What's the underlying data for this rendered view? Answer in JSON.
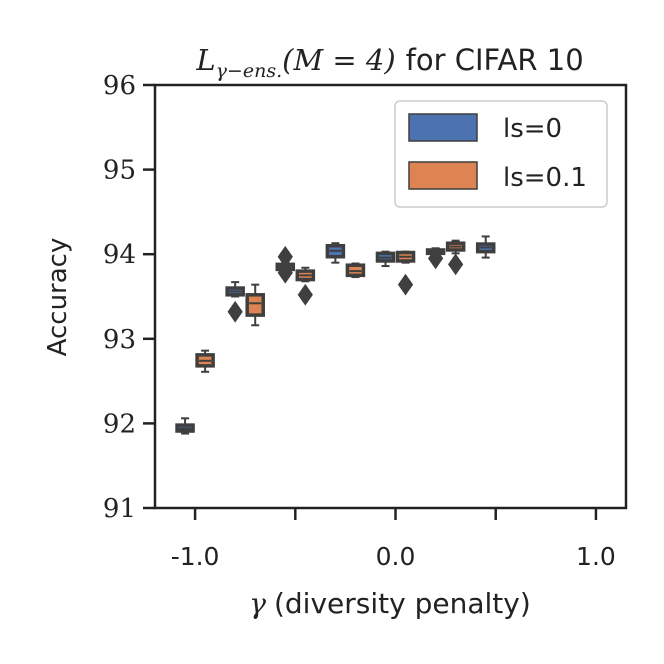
{
  "chart_data": {
    "type": "box",
    "title_math": "L",
    "title_sub": "γ−ens.",
    "title_args": "(M = 4)",
    "title_text": "for CIFAR 10",
    "xlabel_symbol": "γ",
    "xlabel_text": "(diversity penalty)",
    "ylabel": "Accuracy",
    "ylim": [
      91,
      96
    ],
    "yticks": [
      "91",
      "92",
      "93",
      "94",
      "95",
      "96"
    ],
    "xlim": [
      -1.2,
      1.15
    ],
    "xticks": [
      -1.0,
      -0.5,
      0.0,
      0.5,
      1.0
    ],
    "xticklabels": [
      "-1.0",
      "",
      "0.0",
      "",
      "1.0"
    ],
    "legend": {
      "placement": "top-right",
      "entries": [
        {
          "label": "ls=0",
          "color": "#4c72b0"
        },
        {
          "label": "ls=0.1",
          "color": "#dd8452"
        }
      ]
    },
    "series": [
      {
        "name": "ls=0",
        "color": "#4c72b0",
        "boxes": [
          {
            "gamma": -1.0,
            "q1": 91.91,
            "median": 91.94,
            "q3": 91.98,
            "whislo": 91.88,
            "whishi": 92.06,
            "fliers": []
          },
          {
            "gamma": -0.75,
            "q1": 93.52,
            "median": 93.56,
            "q3": 93.6,
            "whislo": 93.5,
            "whishi": 93.67,
            "fliers": [
              93.32
            ]
          },
          {
            "gamma": -0.5,
            "q1": 93.82,
            "median": 93.85,
            "q3": 93.88,
            "whislo": 93.8,
            "whishi": 93.9,
            "fliers": [
              93.97,
              93.78
            ]
          },
          {
            "gamma": -0.25,
            "q1": 93.97,
            "median": 94.04,
            "q3": 94.1,
            "whislo": 93.9,
            "whishi": 94.13,
            "fliers": []
          },
          {
            "gamma": 0.0,
            "q1": 93.92,
            "median": 93.96,
            "q3": 94.01,
            "whislo": 93.86,
            "whishi": 94.03,
            "fliers": []
          },
          {
            "gamma": 0.25,
            "q1": 94.01,
            "median": 94.03,
            "q3": 94.05,
            "whislo": 94.0,
            "whishi": 94.07,
            "fliers": [
              93.95
            ]
          },
          {
            "gamma": 0.5,
            "q1": 94.03,
            "median": 94.08,
            "q3": 94.12,
            "whislo": 93.96,
            "whishi": 94.21,
            "fliers": []
          }
        ]
      },
      {
        "name": "ls=0.1",
        "color": "#dd8452",
        "boxes": [
          {
            "gamma": -1.0,
            "q1": 92.68,
            "median": 92.74,
            "q3": 92.81,
            "whislo": 92.61,
            "whishi": 92.86,
            "fliers": []
          },
          {
            "gamma": -0.75,
            "q1": 93.28,
            "median": 93.42,
            "q3": 93.52,
            "whislo": 93.16,
            "whishi": 93.64,
            "fliers": []
          },
          {
            "gamma": -0.5,
            "q1": 93.7,
            "median": 93.75,
            "q3": 93.8,
            "whislo": 93.68,
            "whishi": 93.84,
            "fliers": [
              93.52
            ]
          },
          {
            "gamma": -0.25,
            "q1": 93.75,
            "median": 93.8,
            "q3": 93.87,
            "whislo": 93.73,
            "whishi": 93.89,
            "fliers": []
          },
          {
            "gamma": 0.0,
            "q1": 93.92,
            "median": 93.97,
            "q3": 94.02,
            "whislo": 93.9,
            "whishi": 94.03,
            "fliers": [
              93.64
            ]
          },
          {
            "gamma": 0.25,
            "q1": 94.05,
            "median": 94.09,
            "q3": 94.13,
            "whislo": 94.01,
            "whishi": 94.16,
            "fliers": [
              93.88
            ]
          }
        ]
      }
    ]
  }
}
